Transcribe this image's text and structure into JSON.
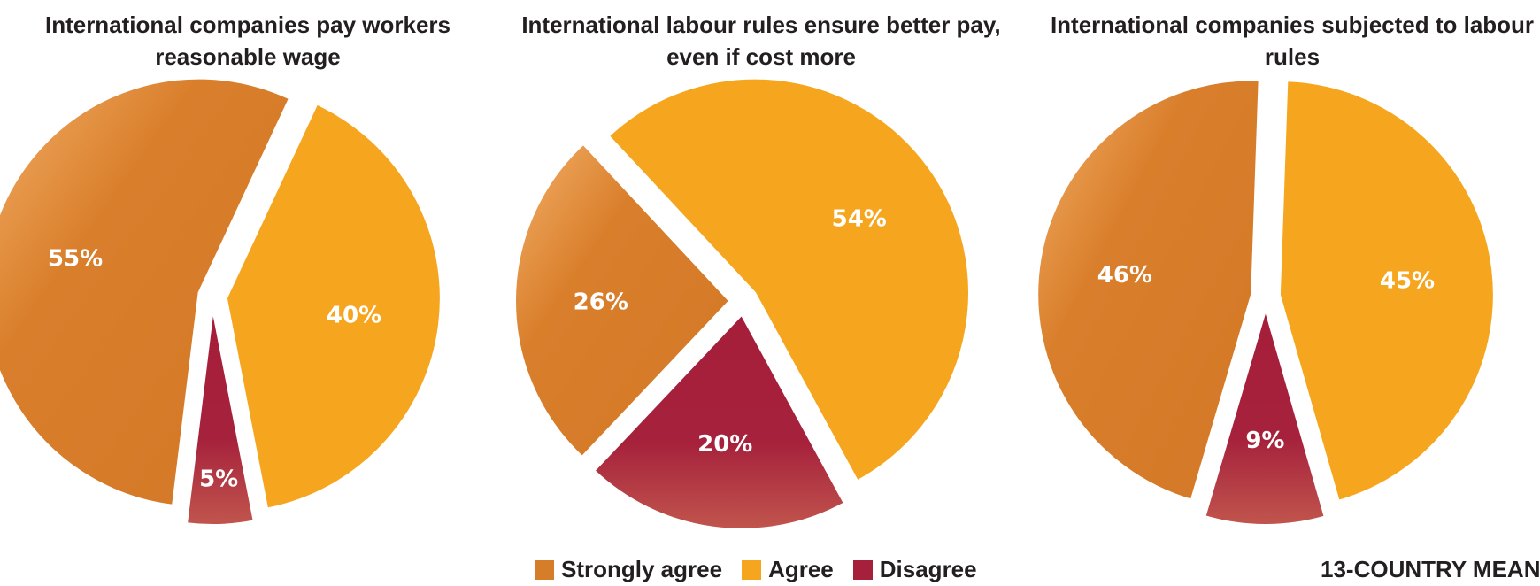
{
  "colors": {
    "Strongly agree": "#d67d2a",
    "Agree": "#f6a61e",
    "Disagree": "#a61f3b"
  },
  "legend": [
    {
      "label": "Strongly agree",
      "color": "#d67d2a"
    },
    {
      "label": "Agree",
      "color": "#f6a61e"
    },
    {
      "label": "Disagree",
      "color": "#a61f3b"
    }
  ],
  "footnote": "13-COUNTRY MEAN",
  "chart_data": [
    {
      "type": "pie",
      "title": "International companies pay workers reasonable wage",
      "slices": [
        {
          "label": "Agree",
          "value": 40,
          "display": "40%"
        },
        {
          "label": "Disagree",
          "value": 5,
          "display": "5%"
        },
        {
          "label": "Strongly agree",
          "value": 55,
          "display": "55%"
        }
      ]
    },
    {
      "type": "pie",
      "title": "International labour rules ensure better pay, even if cost more",
      "slices": [
        {
          "label": "Agree",
          "value": 54,
          "display": "54%"
        },
        {
          "label": "Disagree",
          "value": 20,
          "display": "20%"
        },
        {
          "label": "Strongly agree",
          "value": 26,
          "display": "26%"
        }
      ]
    },
    {
      "type": "pie",
      "title": "International companies subjected to labour rules",
      "slices": [
        {
          "label": "Agree",
          "value": 45,
          "display": "45%"
        },
        {
          "label": "Disagree",
          "value": 9,
          "display": "9%"
        },
        {
          "label": "Strongly agree",
          "value": 46,
          "display": "46%"
        }
      ]
    }
  ]
}
